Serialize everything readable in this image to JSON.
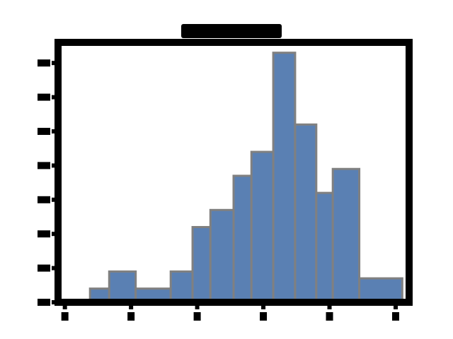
{
  "chart_data": {
    "type": "bar",
    "title": "",
    "xlabel": "",
    "ylabel": "",
    "bins": [
      {
        "x0": -0.62,
        "x1": -0.33,
        "count": 0.8
      },
      {
        "x0": -0.33,
        "x1": 0.07,
        "count": 1.8
      },
      {
        "x0": 0.07,
        "x1": 0.6,
        "count": 0.8
      },
      {
        "x0": 0.6,
        "x1": 0.93,
        "count": 1.8
      },
      {
        "x0": 0.93,
        "x1": 1.2,
        "count": 4.4
      },
      {
        "x0": 1.2,
        "x1": 1.55,
        "count": 5.4
      },
      {
        "x0": 1.55,
        "x1": 1.82,
        "count": 7.4
      },
      {
        "x0": 1.82,
        "x1": 2.15,
        "count": 8.8
      },
      {
        "x0": 2.15,
        "x1": 2.48,
        "count": 14.6
      },
      {
        "x0": 2.48,
        "x1": 2.8,
        "count": 10.4
      },
      {
        "x0": 2.8,
        "x1": 3.05,
        "count": 6.4
      },
      {
        "x0": 3.05,
        "x1": 3.45,
        "count": 7.8
      },
      {
        "x0": 3.45,
        "x1": 4.1,
        "count": 1.4
      }
    ],
    "xlim": [
      -1.05,
      4.15
    ],
    "ylim": [
      0,
      15
    ],
    "xticks": [
      -1,
      0,
      1,
      2,
      3,
      4
    ],
    "yticks": [
      0,
      2,
      4,
      6,
      8,
      10,
      12,
      14
    ],
    "bar_color": "#5a80b3",
    "bar_edge_color": "#808080",
    "grid": false,
    "legend": "none"
  }
}
